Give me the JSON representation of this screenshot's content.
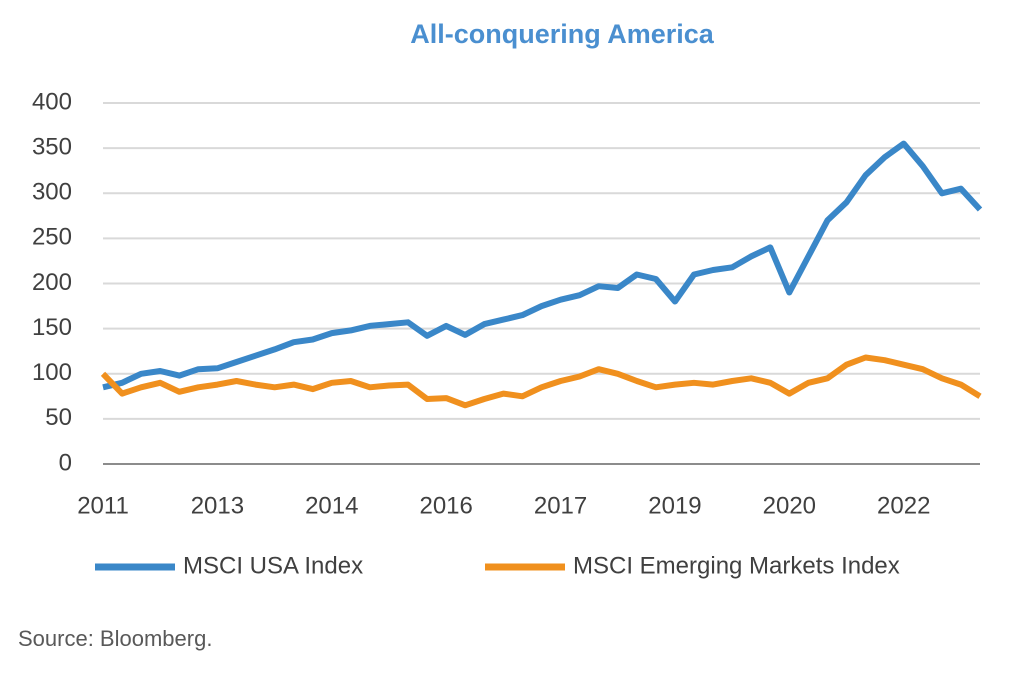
{
  "chart_data": {
    "type": "line",
    "title": "All-conquering America",
    "categories": [
      "2011",
      null,
      null,
      null,
      null,
      null,
      "2013",
      null,
      null,
      null,
      null,
      null,
      "2014",
      null,
      null,
      null,
      null,
      null,
      "2016",
      null,
      null,
      null,
      null,
      null,
      "2017",
      null,
      null,
      null,
      null,
      null,
      "2019",
      null,
      null,
      null,
      null,
      null,
      "2020",
      null,
      null,
      null,
      null,
      null,
      "2022",
      null,
      null,
      null,
      null
    ],
    "series": [
      {
        "name": "MSCI USA Index",
        "color": "#3a87c8",
        "values": [
          85,
          90,
          100,
          103,
          98,
          105,
          106,
          113,
          120,
          127,
          135,
          138,
          145,
          148,
          153,
          155,
          157,
          142,
          153,
          143,
          155,
          160,
          165,
          175,
          182,
          187,
          197,
          195,
          210,
          205,
          180,
          210,
          215,
          218,
          230,
          240,
          190,
          230,
          270,
          290,
          320,
          340,
          355,
          330,
          300,
          305,
          282
        ]
      },
      {
        "name": "MSCI Emerging Markets Index",
        "color": "#f0901e",
        "values": [
          100,
          78,
          85,
          90,
          80,
          85,
          88,
          92,
          88,
          85,
          88,
          83,
          90,
          92,
          85,
          87,
          88,
          72,
          73,
          65,
          72,
          78,
          75,
          85,
          92,
          97,
          105,
          100,
          92,
          85,
          88,
          90,
          88,
          92,
          95,
          90,
          78,
          90,
          95,
          110,
          118,
          115,
          110,
          105,
          95,
          88,
          75
        ]
      }
    ],
    "ylim": [
      0,
      400
    ],
    "yticks": [
      0,
      50,
      100,
      150,
      200,
      250,
      300,
      350,
      400
    ],
    "grid": true,
    "legend": "bottom",
    "source": "Source: Bloomberg."
  }
}
